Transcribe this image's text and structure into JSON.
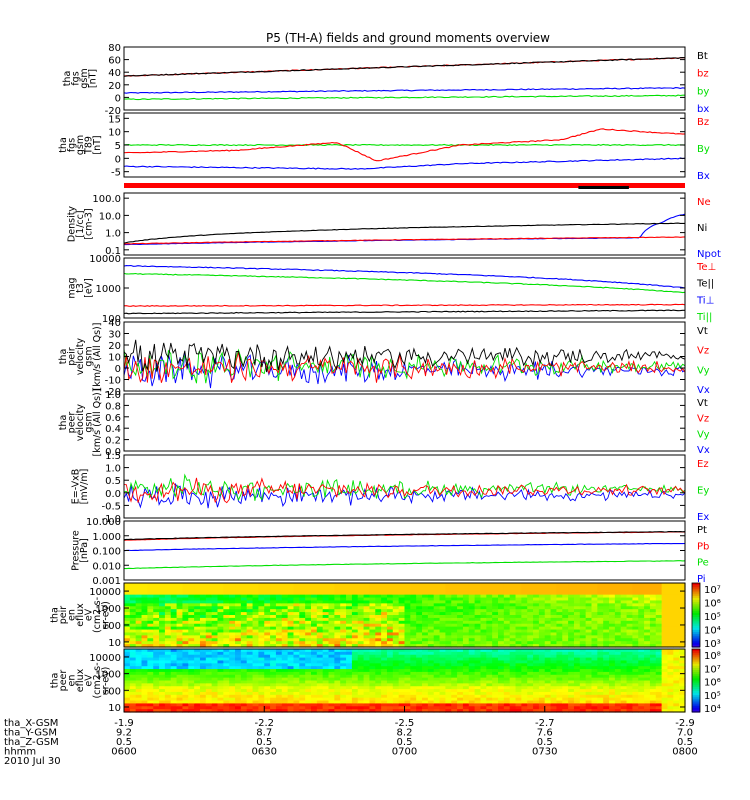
{
  "title": "P5 (TH-A) fields and ground moments overview",
  "colors": {
    "black": "#000000",
    "red": "#ff0000",
    "green": "#00e000",
    "blue": "#0000ff"
  },
  "chart_data": [
    {
      "type": "line",
      "ylabel": [
        "tha",
        "fgs",
        "gsm",
        "[nT]"
      ],
      "ylim": [
        -20,
        80
      ],
      "yticks": [
        "80",
        "60",
        "40",
        "20",
        "0",
        "-20"
      ],
      "series": [
        {
          "name": "Bt",
          "color": "#000000",
          "x": [
            0,
            1
          ],
          "values": [
            34,
            63
          ]
        },
        {
          "name": "bz",
          "color": "#ff0000",
          "x": [
            0,
            1
          ],
          "values": [
            34,
            63
          ]
        },
        {
          "name": "by",
          "color": "#00e000",
          "x": [
            0,
            1
          ],
          "values": [
            -3,
            3
          ]
        },
        {
          "name": "bx",
          "color": "#0000ff",
          "x": [
            0,
            1
          ],
          "values": [
            7,
            15
          ]
        }
      ]
    },
    {
      "type": "line",
      "ylabel": [
        "tha",
        "fgs",
        "gsm",
        "T89",
        "[nT]"
      ],
      "ylim": [
        -7,
        17
      ],
      "yticks": [
        "15",
        "10",
        "5",
        "0",
        "-5"
      ],
      "series": [
        {
          "name": "Bz",
          "color": "#ff0000",
          "x": [
            0,
            0.2,
            0.38,
            0.45,
            0.6,
            0.78,
            0.85,
            1
          ],
          "values": [
            2,
            3,
            6,
            -1,
            5,
            7,
            11,
            9
          ]
        },
        {
          "name": "By",
          "color": "#00e000",
          "x": [
            0,
            1
          ],
          "values": [
            5,
            5
          ]
        },
        {
          "name": "Bx",
          "color": "#0000ff",
          "x": [
            0,
            0.42,
            0.6,
            1
          ],
          "values": [
            -3,
            -4,
            -2,
            0
          ]
        }
      ]
    },
    {
      "type": "line",
      "ylabel": [
        "Density",
        "[1/cc]",
        "[cm-3]"
      ],
      "log": true,
      "ylim": [
        0.05,
        200
      ],
      "yticks": [
        "100.0",
        "10.0",
        "1.0",
        "0.1"
      ],
      "series": [
        {
          "name": "Ne",
          "color": "#ff0000",
          "x": [
            0,
            1
          ],
          "values": [
            0.22,
            0.55
          ]
        },
        {
          "name": "Ni",
          "color": "#000000",
          "x": [
            0,
            1
          ],
          "values": [
            0.25,
            3.5
          ]
        },
        {
          "name": "Npot",
          "color": "#0000ff",
          "x": [
            0,
            0.92,
            0.96,
            1
          ],
          "values": [
            0.2,
            0.5,
            4,
            12
          ]
        }
      ]
    },
    {
      "type": "line",
      "ylabel": [
        "mag",
        "t3",
        "[eV]"
      ],
      "log": true,
      "ylim": [
        100,
        10000
      ],
      "yticks": [
        "10000",
        "1000",
        "100"
      ],
      "series": [
        {
          "name": "Te⊥",
          "color": "#ff0000",
          "x": [
            0,
            1
          ],
          "values": [
            250,
            280
          ]
        },
        {
          "name": "Te||",
          "color": "#000000",
          "x": [
            0,
            1
          ],
          "values": [
            140,
            180
          ]
        },
        {
          "name": "Ti⊥",
          "color": "#0000ff",
          "x": [
            0,
            1
          ],
          "values": [
            5500,
            1000
          ]
        },
        {
          "name": "Ti||",
          "color": "#00e000",
          "x": [
            0,
            1
          ],
          "values": [
            3000,
            700
          ]
        }
      ]
    },
    {
      "type": "line",
      "ylabel": [
        "tha",
        "peir",
        "velocity",
        "gsm",
        "[km/s (All Qs)]"
      ],
      "ylim": [
        -20,
        40
      ],
      "yticks": [
        "40",
        "30",
        "20",
        "10",
        "0",
        "-10",
        "-20"
      ],
      "series": [
        {
          "name": "Vt",
          "color": "#000000"
        },
        {
          "name": "Vz",
          "color": "#ff0000"
        },
        {
          "name": "Vy",
          "color": "#00e000"
        },
        {
          "name": "Vx",
          "color": "#0000ff"
        }
      ]
    },
    {
      "type": "line",
      "ylabel": [
        "tha",
        "peer",
        "velocity",
        "gsm",
        "[km/s (All Qs)]"
      ],
      "ylim": [
        0,
        1
      ],
      "yticks": [
        "1.0",
        "0.8",
        "0.6",
        "0.4",
        "0.2",
        "0.0"
      ],
      "series": [
        {
          "name": "Vt",
          "color": "#000000"
        },
        {
          "name": "Vz",
          "color": "#ff0000"
        },
        {
          "name": "Vy",
          "color": "#00e000"
        },
        {
          "name": "Vx",
          "color": "#0000ff"
        }
      ]
    },
    {
      "type": "line",
      "ylabel": [
        "E=-VxB",
        "[mV/m]"
      ],
      "ylim": [
        -1,
        1.5
      ],
      "yticks": [
        "1.5",
        "1.0",
        "0.5",
        "0.0",
        "-0.5",
        "-1.0"
      ],
      "series": [
        {
          "name": "Ez",
          "color": "#ff0000"
        },
        {
          "name": "Ey",
          "color": "#00e000"
        },
        {
          "name": "Ex",
          "color": "#0000ff"
        }
      ]
    },
    {
      "type": "line",
      "ylabel": [
        "Pressure",
        "[nPa]"
      ],
      "log": true,
      "ylim": [
        0.001,
        10
      ],
      "yticks": [
        "10.000",
        "1.000",
        "0.100",
        "0.010",
        "0.001"
      ],
      "series": [
        {
          "name": "Pt",
          "color": "#000000",
          "x": [
            0,
            1
          ],
          "values": [
            0.55,
            1.9
          ]
        },
        {
          "name": "Pb",
          "color": "#ff0000",
          "x": [
            0,
            1
          ],
          "values": [
            0.5,
            1.8
          ]
        },
        {
          "name": "Pe",
          "color": "#00e000",
          "x": [
            0,
            1
          ],
          "values": [
            0.006,
            0.02
          ]
        },
        {
          "name": "Pi",
          "color": "#0000ff",
          "x": [
            0,
            1
          ],
          "values": [
            0.1,
            0.3
          ]
        }
      ]
    },
    {
      "type": "heatmap",
      "ylabel": [
        "tha",
        "peir",
        "en",
        "eflux",
        "eV",
        "(cm2-s-",
        "sr-eV)"
      ],
      "log": true,
      "ylim": [
        5,
        30000
      ],
      "yticks": [
        "10000",
        "1000",
        "100",
        "10"
      ],
      "colorbar": [
        "10⁷",
        "10⁶",
        "10⁵",
        "10⁴",
        "10³"
      ]
    },
    {
      "type": "heatmap",
      "ylabel": [
        "tha",
        "peer",
        "en",
        "eflux",
        "eV",
        "(cm2-s-",
        "sr-eV)"
      ],
      "log": true,
      "ylim": [
        5,
        30000
      ],
      "yticks": [
        "10000",
        "1000",
        "100",
        "10"
      ],
      "colorbar": [
        "10⁸",
        "10⁷",
        "10⁶",
        "10⁵",
        "10⁴"
      ]
    }
  ],
  "xaxis": {
    "rows": [
      {
        "label": "tha_X-GSM",
        "values": [
          "-1.9",
          "-2.2",
          "-2.5",
          "-2.7",
          "-2.9"
        ]
      },
      {
        "label": "tha_Y-GSM",
        "values": [
          "9.2",
          "8.7",
          "8.2",
          "7.6",
          "7.0"
        ]
      },
      {
        "label": "tha_Z-GSM",
        "values": [
          "0.5",
          "0.5",
          "0.5",
          "0.5",
          "0.5"
        ]
      },
      {
        "label": "hhmm",
        "values": [
          "0600",
          "0630",
          "0700",
          "0730",
          "0800"
        ]
      }
    ],
    "date": "2010 Jul 30"
  }
}
